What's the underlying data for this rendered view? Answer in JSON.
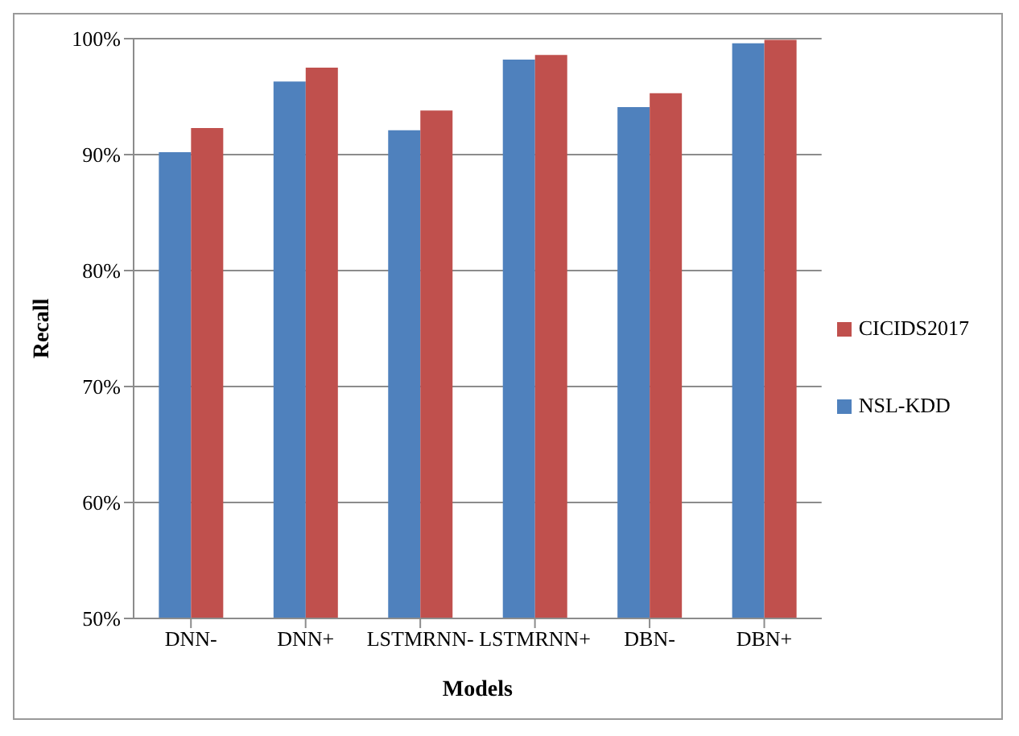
{
  "chart_data": {
    "type": "bar",
    "xlabel": "Models",
    "ylabel": "Recall",
    "categories": [
      "DNN-",
      "DNN+",
      "LSTMRNN-",
      "LSTMRNN+",
      "DBN-",
      "DBN+"
    ],
    "series": [
      {
        "name": "NSL-KDD",
        "color": "#4f81bd",
        "values": [
          90.2,
          96.3,
          92.1,
          98.2,
          94.1,
          99.6
        ]
      },
      {
        "name": "CICIDS2017",
        "color": "#c0504d",
        "values": [
          92.3,
          97.5,
          93.8,
          98.6,
          95.3,
          99.9
        ]
      }
    ],
    "ylim": [
      50,
      100
    ],
    "yticks": [
      {
        "value": 50,
        "label": "50%"
      },
      {
        "value": 60,
        "label": "60%"
      },
      {
        "value": 70,
        "label": "70%"
      },
      {
        "value": 80,
        "label": "80%"
      },
      {
        "value": 90,
        "label": "90%"
      },
      {
        "value": 100,
        "label": "100%"
      }
    ],
    "grid": "y",
    "legend": "right"
  }
}
